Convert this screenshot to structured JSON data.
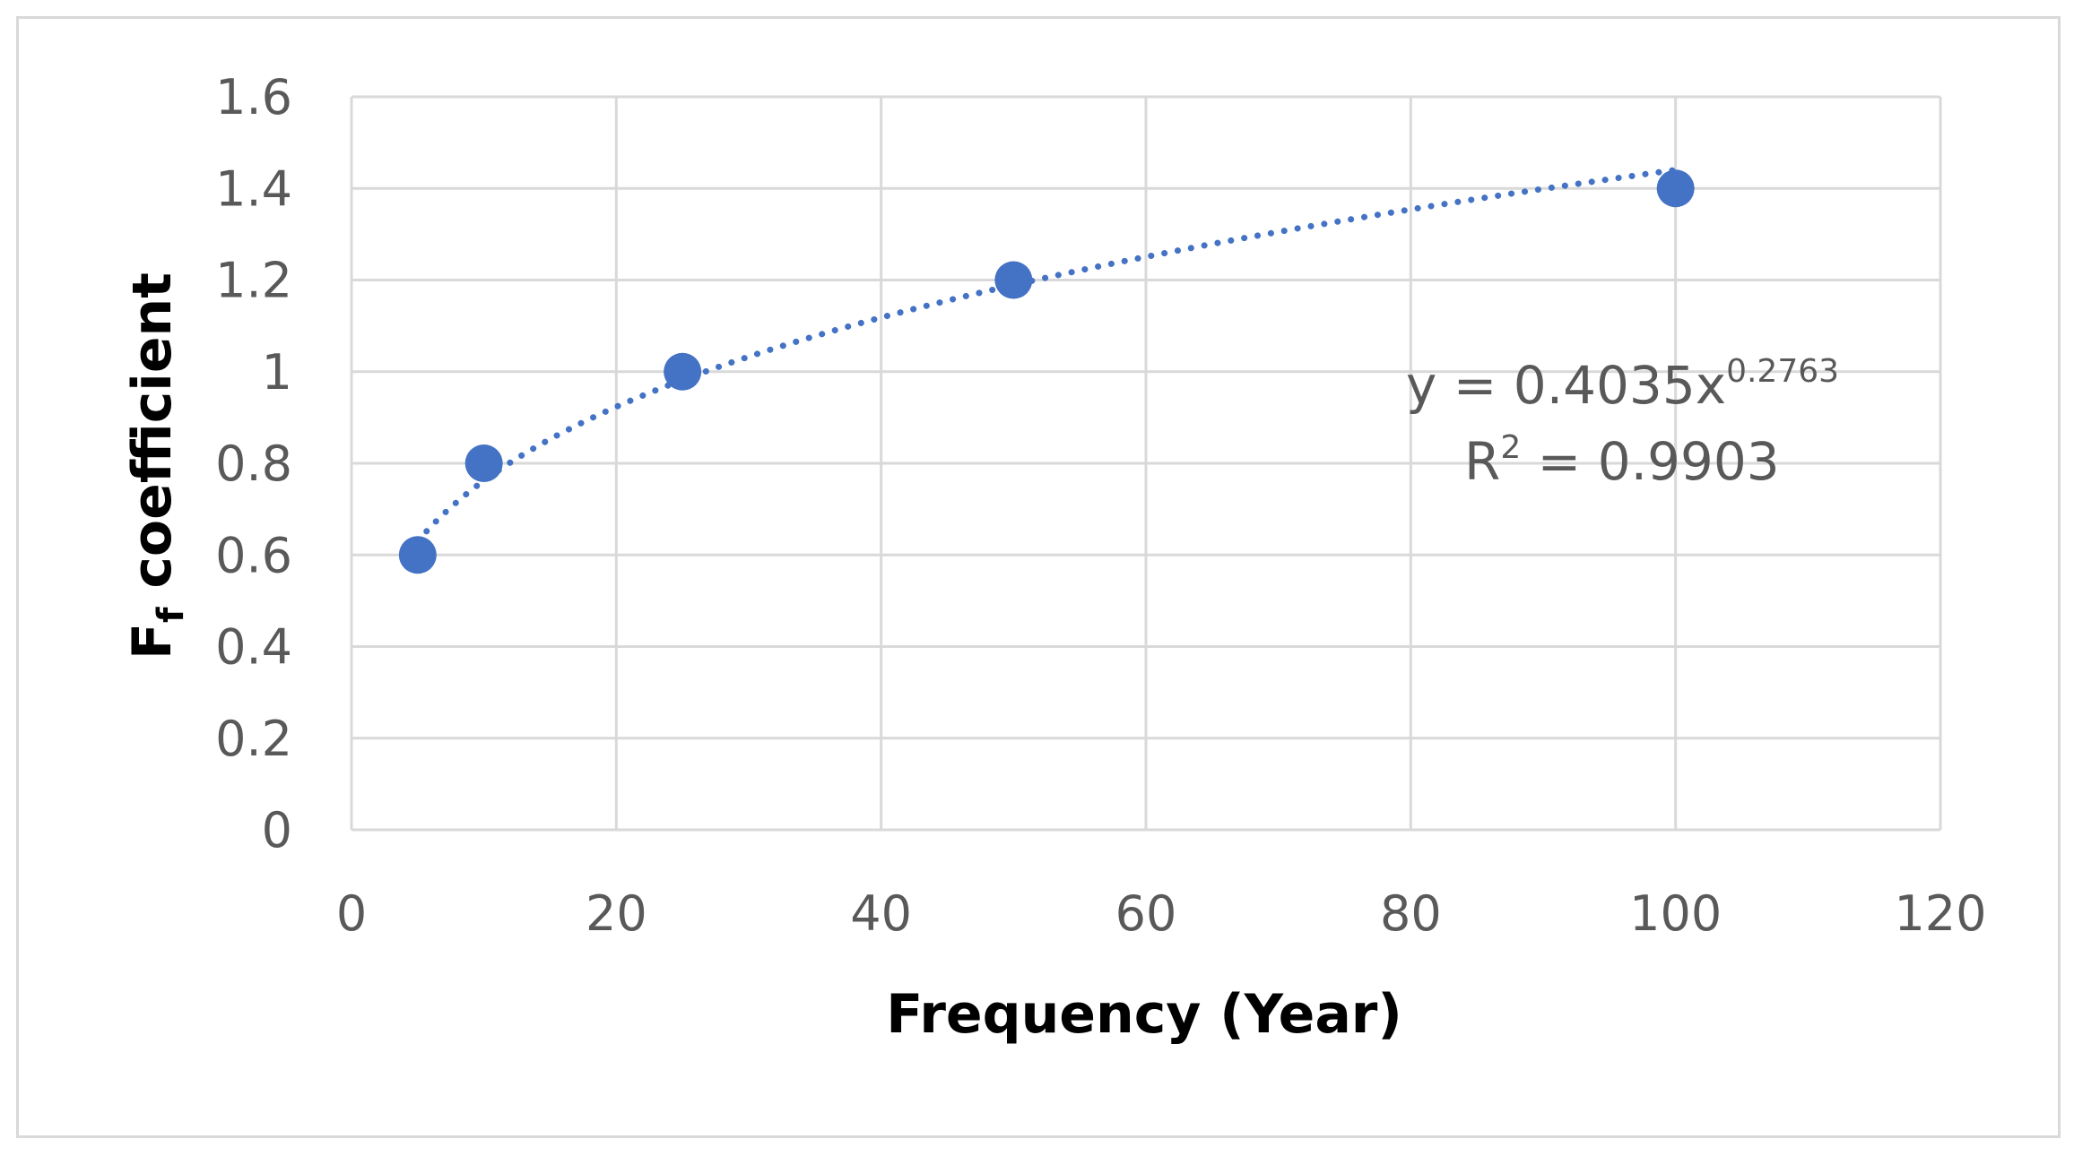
{
  "chart_data": {
    "type": "scatter",
    "title": "",
    "xlabel": "Frequency (Year)",
    "ylabel_main": "F",
    "ylabel_sub": "f",
    "ylabel_rest": " coefficient",
    "xlim": [
      0,
      120
    ],
    "ylim": [
      0,
      1.6
    ],
    "x_ticks": [
      "0",
      "20",
      "40",
      "60",
      "80",
      "100",
      "120"
    ],
    "y_ticks": [
      "0",
      "0.2",
      "0.4",
      "0.6",
      "0.8",
      "1",
      "1.2",
      "1.4",
      "1.6"
    ],
    "grid": true,
    "series": [
      {
        "name": "Ff coefficient",
        "x": [
          5,
          10,
          25,
          50,
          100
        ],
        "y": [
          0.6,
          0.8,
          1.0,
          1.2,
          1.4
        ]
      }
    ],
    "trendline": {
      "type": "power",
      "coefficient": 0.4035,
      "exponent": 0.2763,
      "x_range": [
        5,
        100
      ],
      "equation_main": "y = 0.4035x",
      "equation_exponent": "0.2763",
      "r2_prefix": "R",
      "r2_sup": "2",
      "r2_value": " = 0.9903"
    },
    "colors": {
      "marker": "#4472c4",
      "trendline": "#4472c4",
      "grid": "#d9d9d9",
      "tick_text": "#595959"
    }
  }
}
